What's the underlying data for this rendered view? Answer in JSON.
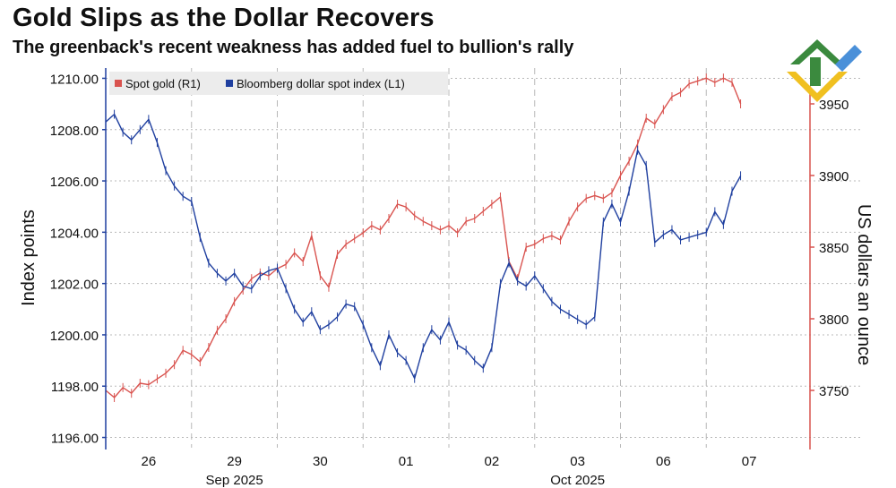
{
  "header": {
    "title": "Gold Slips as the Dollar Recovers",
    "subtitle": "The greenback's recent weakness has added fuel to bullion's rally"
  },
  "colors": {
    "gold_series": "#d9534f",
    "dollar_series": "#1f3f9f",
    "grid": "#b8b8b8",
    "left_axis": "#1f3f9f",
    "right_axis": "#d9534f"
  },
  "icon": "brand-logo-icon",
  "chart_data": {
    "type": "line",
    "title": "Gold Slips as the Dollar Recovers",
    "subtitle": "The greenback's recent weakness has added fuel to bullion's rally",
    "legend": [
      "Spot gold (R1)",
      "Bloomberg dollar spot index (L1)"
    ],
    "legend_position": "top-left",
    "ylabel_left": "Index points",
    "ylabel_right": "US dollars an ounce",
    "ylim_left": [
      1195.6,
      1210.4
    ],
    "ylim_right": [
      3710,
      3975
    ],
    "yticks_left": [
      "1196.00",
      "1198.00",
      "1200.00",
      "1202.00",
      "1204.00",
      "1206.00",
      "1208.00",
      "1210.00"
    ],
    "yticks_left_values": [
      1196,
      1198,
      1200,
      1202,
      1204,
      1206,
      1208,
      1210
    ],
    "yticks_right": [
      "3750",
      "3800",
      "3850",
      "3900",
      "3950"
    ],
    "yticks_right_values": [
      3750,
      3800,
      3850,
      3900,
      3950
    ],
    "xlim": [
      0,
      8
    ],
    "x_day_labels": [
      "26",
      "29",
      "30",
      "01",
      "02",
      "03",
      "06",
      "07"
    ],
    "x_day_positions": [
      0.5,
      1.5,
      2.5,
      3.5,
      4.5,
      5.5,
      6.5,
      7.5
    ],
    "x_month_labels": [
      {
        "label": "Sep 2025",
        "x": 1.5
      },
      {
        "label": "Oct 2025",
        "x": 5.5
      }
    ],
    "x_dividers": [
      1,
      2,
      3,
      4,
      5,
      6,
      7
    ],
    "grid": true,
    "series": [
      {
        "name": "Spot gold (R1)",
        "axis": "right",
        "x": [
          0,
          0.1,
          0.2,
          0.3,
          0.4,
          0.5,
          0.6,
          0.7,
          0.8,
          0.9,
          1.0,
          1.1,
          1.2,
          1.3,
          1.4,
          1.5,
          1.6,
          1.7,
          1.8,
          1.9,
          2.0,
          2.1,
          2.2,
          2.3,
          2.4,
          2.5,
          2.6,
          2.7,
          2.8,
          2.9,
          3.0,
          3.1,
          3.2,
          3.3,
          3.4,
          3.5,
          3.6,
          3.7,
          3.8,
          3.9,
          4.0,
          4.1,
          4.2,
          4.3,
          4.4,
          4.5,
          4.6,
          4.7,
          4.8,
          4.9,
          5.0,
          5.1,
          5.2,
          5.3,
          5.4,
          5.5,
          5.6,
          5.7,
          5.8,
          5.9,
          6.0,
          6.1,
          6.2,
          6.3,
          6.4,
          6.5,
          6.6,
          6.7,
          6.8,
          6.9,
          7.0,
          7.1,
          7.2,
          7.3,
          7.4
        ],
        "values": [
          3750,
          3745,
          3752,
          3748,
          3755,
          3754,
          3758,
          3762,
          3768,
          3778,
          3775,
          3770,
          3780,
          3792,
          3800,
          3812,
          3820,
          3828,
          3832,
          3830,
          3835,
          3838,
          3846,
          3840,
          3858,
          3830,
          3822,
          3845,
          3852,
          3856,
          3860,
          3865,
          3862,
          3870,
          3880,
          3878,
          3872,
          3868,
          3865,
          3862,
          3865,
          3860,
          3868,
          3870,
          3875,
          3880,
          3885,
          3840,
          3828,
          3850,
          3852,
          3856,
          3858,
          3855,
          3868,
          3878,
          3884,
          3886,
          3884,
          3888,
          3900,
          3910,
          3922,
          3940,
          3936,
          3946,
          3955,
          3958,
          3964,
          3966,
          3968,
          3965,
          3968,
          3965,
          3950
        ]
      },
      {
        "name": "Bloomberg dollar spot index (L1)",
        "axis": "left",
        "x": [
          0,
          0.1,
          0.2,
          0.3,
          0.4,
          0.5,
          0.6,
          0.7,
          0.8,
          0.9,
          1.0,
          1.1,
          1.2,
          1.3,
          1.4,
          1.5,
          1.6,
          1.7,
          1.8,
          1.9,
          2.0,
          2.1,
          2.2,
          2.3,
          2.4,
          2.5,
          2.6,
          2.7,
          2.8,
          2.9,
          3.0,
          3.1,
          3.2,
          3.3,
          3.4,
          3.5,
          3.6,
          3.7,
          3.8,
          3.9,
          4.0,
          4.1,
          4.2,
          4.3,
          4.4,
          4.5,
          4.6,
          4.7,
          4.8,
          4.9,
          5.0,
          5.1,
          5.2,
          5.3,
          5.4,
          5.5,
          5.6,
          5.7,
          5.8,
          5.9,
          6.0,
          6.1,
          6.2,
          6.3,
          6.4,
          6.5,
          6.6,
          6.7,
          6.8,
          6.9,
          7.0,
          7.1,
          7.2,
          7.3,
          7.4
        ],
        "values": [
          1208.3,
          1208.6,
          1207.9,
          1207.6,
          1208.0,
          1208.4,
          1207.5,
          1206.4,
          1205.8,
          1205.4,
          1205.2,
          1203.8,
          1202.8,
          1202.4,
          1202.1,
          1202.4,
          1201.9,
          1201.8,
          1202.3,
          1202.5,
          1202.6,
          1201.8,
          1201.0,
          1200.5,
          1200.9,
          1200.2,
          1200.4,
          1200.7,
          1201.2,
          1201.1,
          1200.4,
          1199.5,
          1198.8,
          1200.0,
          1199.3,
          1199.0,
          1198.3,
          1199.5,
          1200.2,
          1199.8,
          1200.5,
          1199.6,
          1199.4,
          1199.0,
          1198.7,
          1199.5,
          1202.0,
          1202.8,
          1202.1,
          1201.9,
          1202.3,
          1201.8,
          1201.3,
          1201.0,
          1200.8,
          1200.6,
          1200.4,
          1200.7,
          1204.4,
          1205.1,
          1204.4,
          1205.6,
          1207.2,
          1206.6,
          1203.6,
          1203.9,
          1204.1,
          1203.7,
          1203.8,
          1203.9,
          1204.0,
          1204.8,
          1204.3,
          1205.6,
          1206.2
        ]
      }
    ]
  }
}
